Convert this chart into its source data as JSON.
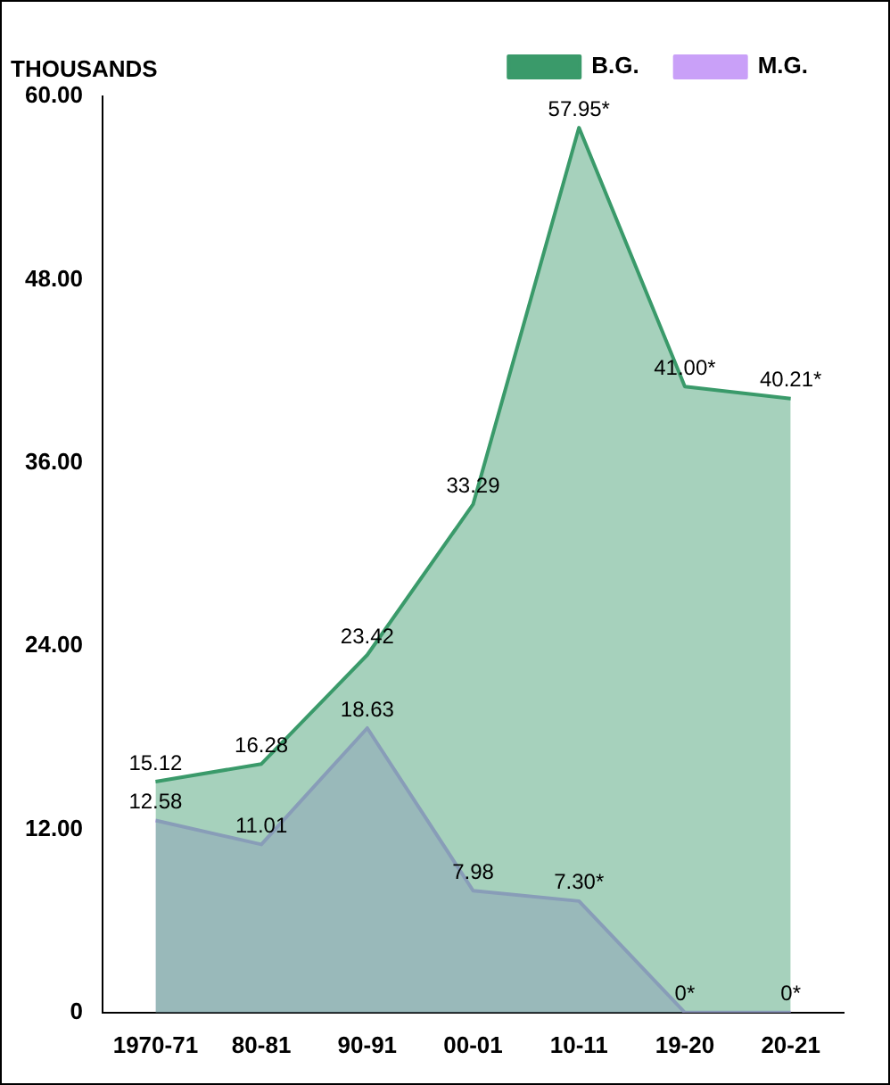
{
  "chart_data": {
    "type": "area",
    "ylabel": "THOUSANDS",
    "categories": [
      "1970-71",
      "80-81",
      "90-91",
      "00-01",
      "10-11",
      "19-20",
      "20-21"
    ],
    "series": [
      {
        "name": "B.G.",
        "color": "#3a9a6a",
        "values": [
          15.12,
          16.28,
          23.42,
          33.29,
          57.95,
          41.0,
          40.21
        ],
        "value_labels": [
          "15.12",
          "16.28",
          "23.42",
          "33.29",
          "57.95*",
          "41.00*",
          "40.21*"
        ]
      },
      {
        "name": "M.G.",
        "color": "#c9a0f8",
        "values": [
          12.58,
          11.01,
          18.63,
          7.98,
          7.3,
          0,
          0
        ],
        "value_labels": [
          "12.58",
          "11.01",
          "18.63",
          "7.98",
          "7.30*",
          "0*",
          "0*"
        ]
      }
    ],
    "ylim": [
      0,
      60
    ],
    "yticks": [
      {
        "value": 0,
        "label": "0"
      },
      {
        "value": 12,
        "label": "12.00"
      },
      {
        "value": 24,
        "label": "24.00"
      },
      {
        "value": 36,
        "label": "36.00"
      },
      {
        "value": 48,
        "label": "48.00"
      },
      {
        "value": 60,
        "label": "60.00"
      }
    ],
    "legend": "top right",
    "grid": false
  }
}
